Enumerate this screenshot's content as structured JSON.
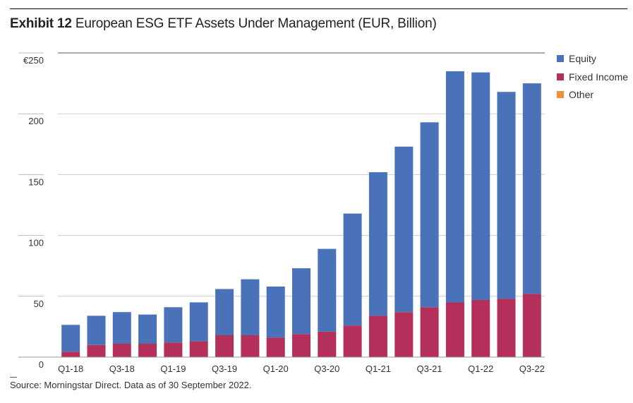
{
  "header": {
    "exhibit_label": "Exhibit 12",
    "title_text": "European ESG ETF Assets Under Management (EUR, Billion)"
  },
  "footer": {
    "source": "Source: Morningstar Direct. Data as of 30 September 2022."
  },
  "colors": {
    "equity": "#4a72b8",
    "fixed_income": "#b42f5a",
    "other": "#f0913a",
    "grid": "#cccccc",
    "axis": "#999999"
  },
  "chart_data": {
    "type": "bar",
    "stacked": true,
    "title": "European ESG ETF Assets Under Management (EUR, Billion)",
    "xlabel": "",
    "ylabel": "",
    "ylim": [
      0,
      250
    ],
    "y_ticks": [
      0,
      50,
      100,
      150,
      200,
      250
    ],
    "y_tick_labels": [
      "0",
      "50",
      "100",
      "150",
      "200",
      "€250"
    ],
    "categories": [
      "Q1-18",
      "Q2-18",
      "Q3-18",
      "Q4-18",
      "Q1-19",
      "Q2-19",
      "Q3-19",
      "Q4-19",
      "Q1-20",
      "Q2-20",
      "Q3-20",
      "Q4-20",
      "Q1-21",
      "Q2-21",
      "Q3-21",
      "Q4-21",
      "Q1-22",
      "Q2-22",
      "Q3-22"
    ],
    "x_tick_labels": [
      "Q1-18",
      "Q3-18",
      "Q1-19",
      "Q3-19",
      "Q1-20",
      "Q3-20",
      "Q1-21",
      "Q3-21",
      "Q1-22",
      "Q3-22"
    ],
    "legend_position": "right",
    "series": [
      {
        "name": "Equity",
        "color_key": "equity",
        "values": [
          22,
          24,
          26,
          24,
          29,
          32,
          38,
          46,
          42,
          54,
          68,
          92,
          118,
          136,
          152,
          190,
          187,
          170,
          173
        ]
      },
      {
        "name": "Fixed Income",
        "color_key": "fixed_income",
        "values": [
          4.5,
          10,
          11,
          11,
          12,
          13,
          18,
          18,
          16,
          19,
          21,
          26,
          34,
          37,
          41,
          45,
          47,
          48,
          52
        ]
      },
      {
        "name": "Other",
        "color_key": "other",
        "values": [
          0,
          0,
          0,
          0,
          0,
          0,
          0,
          0,
          0,
          0,
          0,
          0,
          0,
          0,
          0,
          0,
          0,
          0,
          0
        ]
      }
    ]
  }
}
